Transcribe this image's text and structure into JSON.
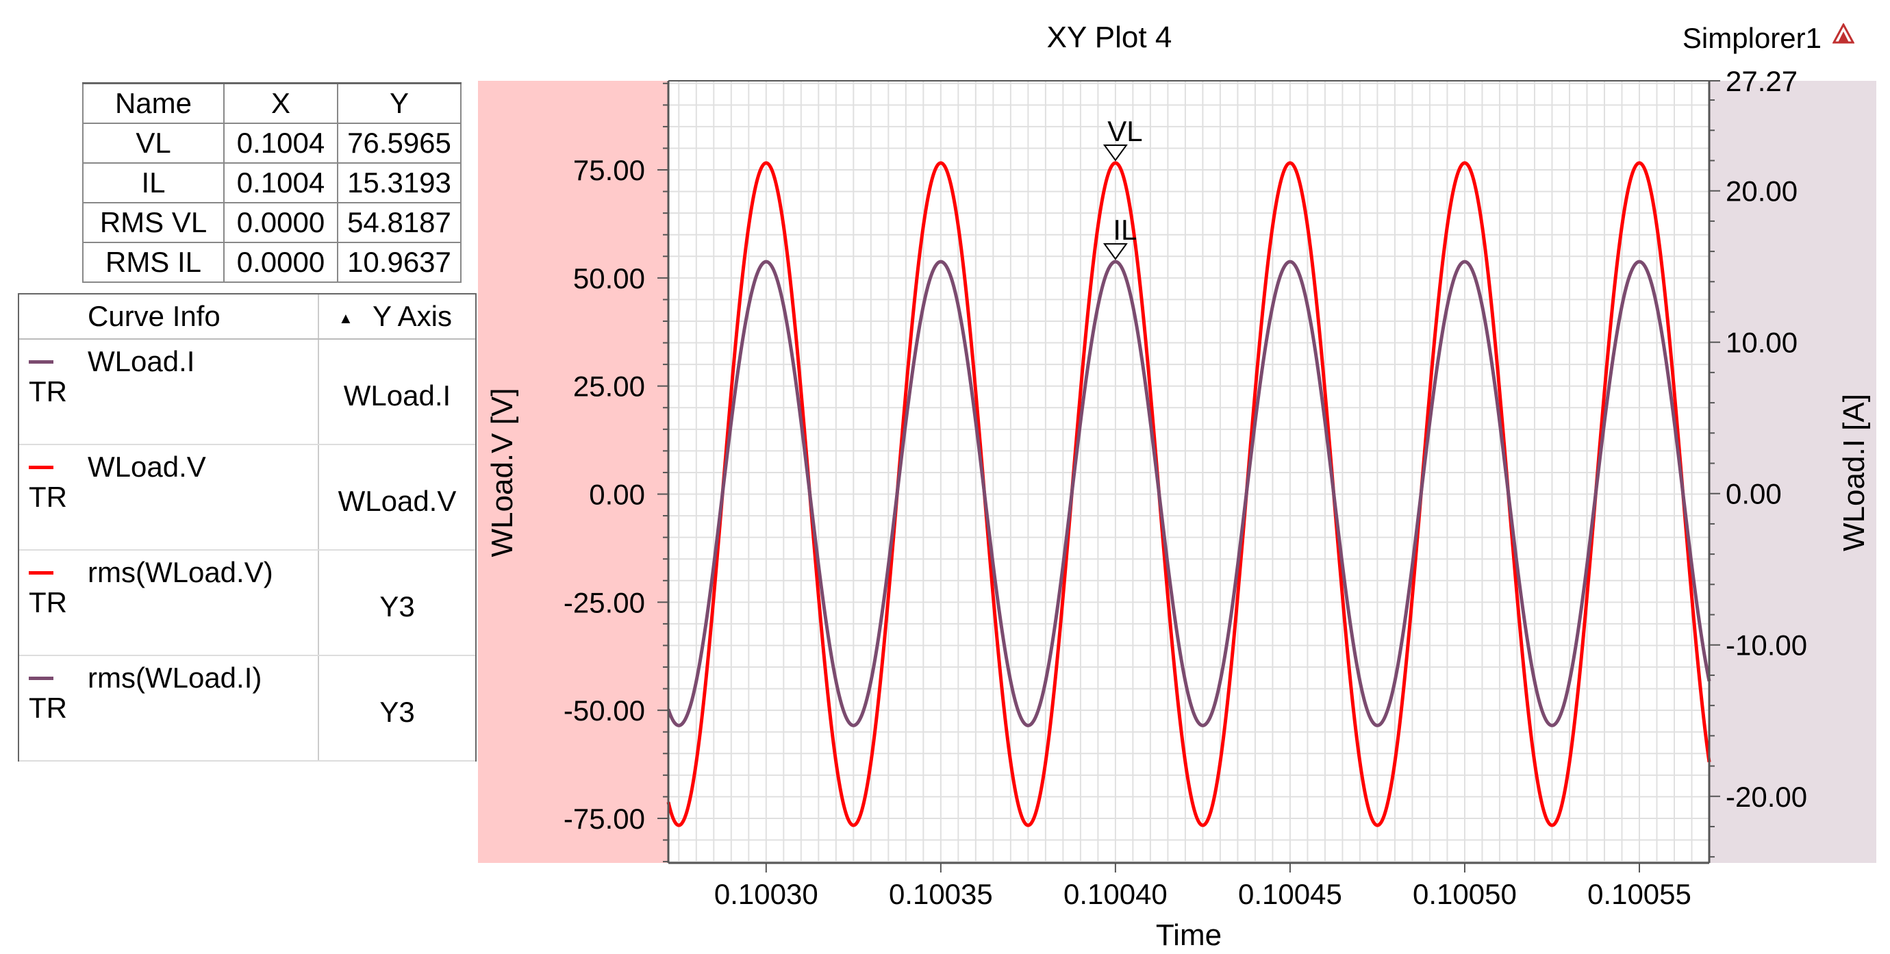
{
  "title": "XY Plot 4",
  "project": "Simplorer1",
  "marker_table": {
    "headers": [
      "Name",
      "X",
      "Y"
    ],
    "rows": [
      [
        "VL",
        "0.1004",
        "76.5965"
      ],
      [
        "IL",
        "0.1004",
        "15.3193"
      ],
      [
        "RMS VL",
        "0.0000",
        "54.8187"
      ],
      [
        "RMS IL",
        "0.0000",
        "10.9637"
      ]
    ]
  },
  "legend": {
    "header_curve": "Curve Info",
    "header_axis": "Y Axis",
    "sort_icon": "sort-ascending-icon",
    "items": [
      {
        "name": "WLoad.I",
        "type": "TR",
        "axis": "WLoad.I",
        "color": "#7b4b6f"
      },
      {
        "name": "WLoad.V",
        "type": "TR",
        "axis": "WLoad.V",
        "color": "#ff0000"
      },
      {
        "name": "rms(WLoad.V)",
        "type": "TR",
        "axis": "Y3",
        "color": "#ff0000"
      },
      {
        "name": "rms(WLoad.I)",
        "type": "TR",
        "axis": "Y3",
        "color": "#7b4b6f"
      }
    ]
  },
  "chart_data": {
    "type": "line",
    "title": "XY Plot 4",
    "xlabel": "Time",
    "ylabel": "WLoad.V [V]",
    "y2label": "WLoad.I [A]",
    "xlim": [
      0.100272,
      0.10057
    ],
    "ylim": [
      -85.3,
      95.6
    ],
    "y2lim": [
      -24.4,
      27.27
    ],
    "x_ticks": [
      "0.10030",
      "0.10035",
      "0.10040",
      "0.10045",
      "0.10050",
      "0.10055"
    ],
    "x_tick_values": [
      0.1003,
      0.10035,
      0.1004,
      0.10045,
      0.1005,
      0.10055
    ],
    "y_ticks": [
      "75.00",
      "50.00",
      "25.00",
      "0.00",
      "-25.00",
      "-50.00",
      "-75.00"
    ],
    "y_tick_values": [
      75,
      50,
      25,
      0,
      -25,
      -50,
      -75
    ],
    "y2_ticks": [
      "27.27",
      "20.00",
      "10.00",
      "0.00",
      "-10.00",
      "-20.00"
    ],
    "y2_tick_values": [
      27.27,
      20,
      10,
      0,
      -10,
      -20
    ],
    "grid": true,
    "series": [
      {
        "name": "WLoad.V",
        "axis": "left",
        "color": "#ff0000",
        "amplitude": 76.6,
        "frequency_hz": 20000,
        "peak_time": 0.1004
      },
      {
        "name": "WLoad.I",
        "axis": "right",
        "color": "#7b4b6f",
        "amplitude": 15.32,
        "frequency_hz": 20000,
        "peak_time": 0.1004
      }
    ],
    "markers": [
      {
        "label": "VL",
        "x": 0.1004,
        "y": 76.5965,
        "axis": "left"
      },
      {
        "label": "IL",
        "x": 0.1004,
        "y": 15.3193,
        "axis": "right"
      }
    ],
    "colors": {
      "left_axis_band": "#ffcaca",
      "right_axis_band": "#e7dde3",
      "grid": "#e0e0e0"
    }
  }
}
